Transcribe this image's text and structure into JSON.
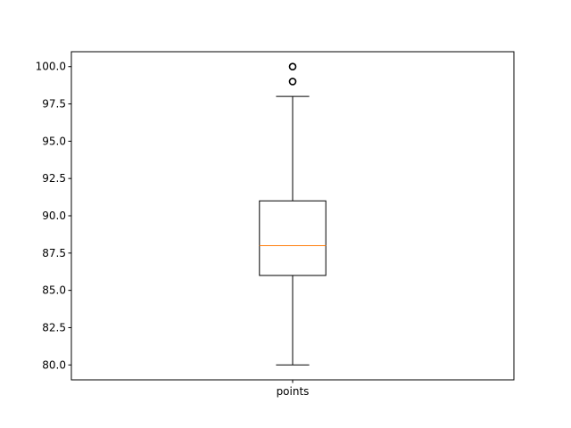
{
  "chart_data": {
    "type": "box",
    "categories": [
      "points"
    ],
    "series": [
      {
        "whisker_low": 80.0,
        "q1": 86.0,
        "median": 88.0,
        "q3": 91.0,
        "whisker_high": 98.0,
        "outliers": [
          99.0,
          100.0
        ]
      }
    ],
    "ylim": [
      79.0,
      101.0
    ],
    "yticks": [
      80.0,
      82.5,
      85.0,
      87.5,
      90.0,
      92.5,
      95.0,
      97.5,
      100.0
    ],
    "ytick_labels": [
      "80.0",
      "82.5",
      "85.0",
      "87.5",
      "90.0",
      "92.5",
      "95.0",
      "97.5",
      "100.0"
    ],
    "title": "",
    "xlabel": "",
    "ylabel": "",
    "grid": false,
    "colors": {
      "box": "#000000",
      "median": "#ff7f0e",
      "outlier": "#000000"
    }
  }
}
